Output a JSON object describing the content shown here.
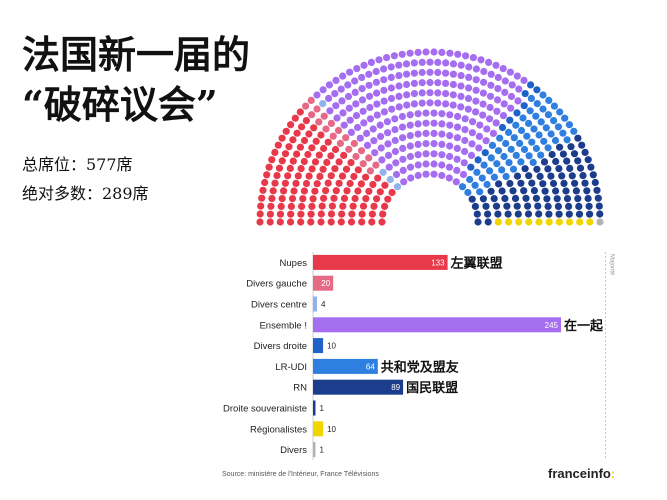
{
  "title_line1": "法国新一届的",
  "title_line2": "“破碎议会”",
  "seats_total_text": "总席位：577席",
  "majority_text": "绝对多数：289席",
  "source": "Source: ministère de l'Intérieur, France Télévisions",
  "brand": "franceinfo",
  "brand_suffix": ":",
  "majority_label": "Majorité",
  "chart_data": {
    "type": "bar",
    "orientation": "horizontal",
    "total_seats": 577,
    "majority": 289,
    "categories": [
      "Nupes",
      "Divers gauche",
      "Divers centre",
      "Ensemble !",
      "Divers droite",
      "LR-UDI",
      "RN",
      "Droite souverainiste",
      "Régionalistes",
      "Divers"
    ],
    "values": [
      133,
      20,
      4,
      245,
      10,
      64,
      89,
      1,
      10,
      1
    ],
    "colors": [
      "#e8394a",
      "#e66a86",
      "#8fb3ea",
      "#a56ef0",
      "#1f63c9",
      "#2e7fe0",
      "#1c3c8c",
      "#1c3c8c",
      "#f2d500",
      "#b3b3b3"
    ],
    "annotations": {
      "0": "左翼联盟",
      "3": "在一起",
      "5": "共和党及盟友",
      "6": "国民联盟"
    },
    "hemicycle_colors": [
      "#e8394a",
      "#e66a86",
      "#8fb3ea",
      "#a56ef0",
      "#1f63c9",
      "#2e7fe0",
      "#1c3c8c",
      "#1c3c8c",
      "#f2d500",
      "#b3b3b3"
    ]
  }
}
